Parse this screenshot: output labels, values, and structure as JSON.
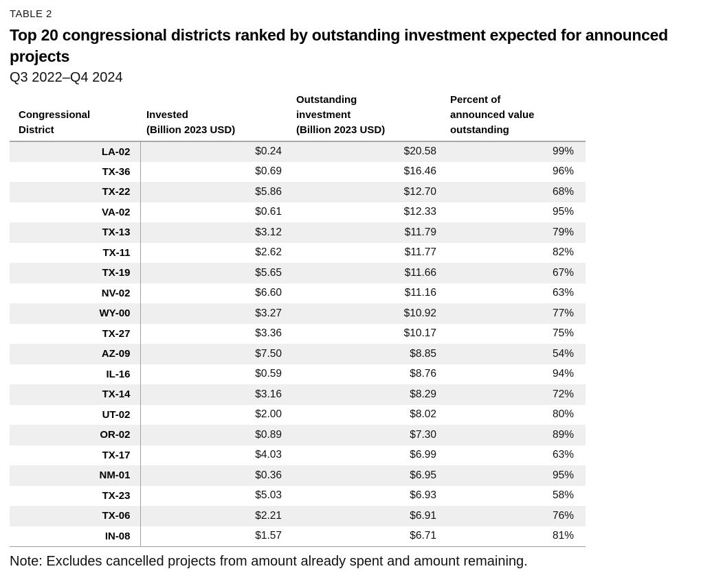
{
  "table_label": "TABLE 2",
  "title": "Top 20 congressional districts ranked by outstanding investment expected for announced projects",
  "subtitle": "Q3 2022–Q4 2024",
  "note": "Note: Excludes cancelled projects from amount already spent and amount remaining.",
  "colors": {
    "row_alt_bg": "#efefef",
    "column_divider": "#9e9e9e",
    "header_rule": "#a8a8a8",
    "text": "#000000"
  },
  "table": {
    "headers": {
      "district": "Congressional\nDistrict",
      "invested": "Invested\n(Billion 2023 USD)",
      "outstanding": "Outstanding\ninvestment\n(Billion 2023 USD)",
      "percent": "Percent of\nannounced value\noutstanding"
    },
    "rows": [
      {
        "district": "LA-02",
        "invested": "$0.24",
        "outstanding": "$20.58",
        "percent": "99%"
      },
      {
        "district": "TX-36",
        "invested": "$0.69",
        "outstanding": "$16.46",
        "percent": "96%"
      },
      {
        "district": "TX-22",
        "invested": "$5.86",
        "outstanding": "$12.70",
        "percent": "68%"
      },
      {
        "district": "VA-02",
        "invested": "$0.61",
        "outstanding": "$12.33",
        "percent": "95%"
      },
      {
        "district": "TX-13",
        "invested": "$3.12",
        "outstanding": "$11.79",
        "percent": "79%"
      },
      {
        "district": "TX-11",
        "invested": "$2.62",
        "outstanding": "$11.77",
        "percent": "82%"
      },
      {
        "district": "TX-19",
        "invested": "$5.65",
        "outstanding": "$11.66",
        "percent": "67%"
      },
      {
        "district": "NV-02",
        "invested": "$6.60",
        "outstanding": "$11.16",
        "percent": "63%"
      },
      {
        "district": "WY-00",
        "invested": "$3.27",
        "outstanding": "$10.92",
        "percent": "77%"
      },
      {
        "district": "TX-27",
        "invested": "$3.36",
        "outstanding": "$10.17",
        "percent": "75%"
      },
      {
        "district": "AZ-09",
        "invested": "$7.50",
        "outstanding": "$8.85",
        "percent": "54%"
      },
      {
        "district": "IL-16",
        "invested": "$0.59",
        "outstanding": "$8.76",
        "percent": "94%"
      },
      {
        "district": "TX-14",
        "invested": "$3.16",
        "outstanding": "$8.29",
        "percent": "72%"
      },
      {
        "district": "UT-02",
        "invested": "$2.00",
        "outstanding": "$8.02",
        "percent": "80%"
      },
      {
        "district": "OR-02",
        "invested": "$0.89",
        "outstanding": "$7.30",
        "percent": "89%"
      },
      {
        "district": "TX-17",
        "invested": "$4.03",
        "outstanding": "$6.99",
        "percent": "63%"
      },
      {
        "district": "NM-01",
        "invested": "$0.36",
        "outstanding": "$6.95",
        "percent": "95%"
      },
      {
        "district": "TX-23",
        "invested": "$5.03",
        "outstanding": "$6.93",
        "percent": "58%"
      },
      {
        "district": "TX-06",
        "invested": "$2.21",
        "outstanding": "$6.91",
        "percent": "76%"
      },
      {
        "district": "IN-08",
        "invested": "$1.57",
        "outstanding": "$6.71",
        "percent": "81%"
      }
    ]
  },
  "chart_data": {
    "type": "table",
    "title": "Top 20 congressional districts ranked by outstanding investment expected for announced projects",
    "subtitle": "Q3 2022–Q4 2024",
    "columns": [
      "Congressional District",
      "Invested (Billion 2023 USD)",
      "Outstanding investment (Billion 2023 USD)",
      "Percent of announced value outstanding"
    ],
    "districts": [
      "LA-02",
      "TX-36",
      "TX-22",
      "VA-02",
      "TX-13",
      "TX-11",
      "TX-19",
      "NV-02",
      "WY-00",
      "TX-27",
      "AZ-09",
      "IL-16",
      "TX-14",
      "UT-02",
      "OR-02",
      "TX-17",
      "NM-01",
      "TX-23",
      "TX-06",
      "IN-08"
    ],
    "invested_billion_usd": [
      0.24,
      0.69,
      5.86,
      0.61,
      3.12,
      2.62,
      5.65,
      6.6,
      3.27,
      3.36,
      7.5,
      0.59,
      3.16,
      2.0,
      0.89,
      4.03,
      0.36,
      5.03,
      2.21,
      1.57
    ],
    "outstanding_billion_usd": [
      20.58,
      16.46,
      12.7,
      12.33,
      11.79,
      11.77,
      11.66,
      11.16,
      10.92,
      10.17,
      8.85,
      8.76,
      8.29,
      8.02,
      7.3,
      6.99,
      6.95,
      6.93,
      6.91,
      6.71
    ],
    "percent_outstanding": [
      99,
      96,
      68,
      95,
      79,
      82,
      67,
      63,
      77,
      75,
      54,
      94,
      72,
      80,
      89,
      63,
      95,
      58,
      76,
      81
    ],
    "note": "Note: Excludes cancelled projects from amount already spent and amount remaining."
  }
}
